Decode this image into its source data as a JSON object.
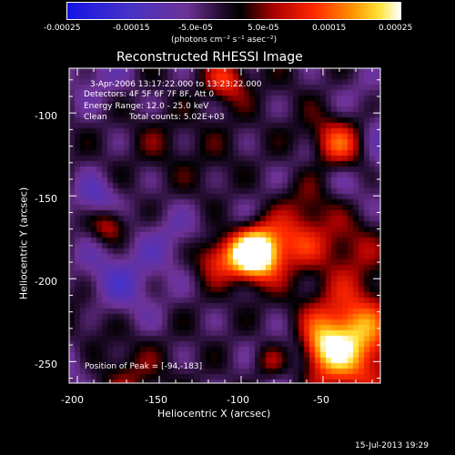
{
  "colorbar": {
    "tick_labels": [
      "-0.00025",
      "-0.00015",
      "-5.0e-05",
      "5.0e-05",
      "0.00015",
      "0.00025"
    ],
    "unit_text": "(photons cm⁻² s⁻¹ asec⁻²)",
    "range": [
      -0.00025,
      0.00025
    ]
  },
  "plot": {
    "title": "Reconstructed RHESSI Image",
    "x_axis_title": "Heliocentric X (arcsec)",
    "y_axis_title": "Heliocentric Y (arcsec)",
    "x_tick_labels": [
      "-200",
      "-150",
      "-100",
      "-50"
    ],
    "y_tick_labels": [
      "-100",
      "-150",
      "-200",
      "-250"
    ],
    "x_range": [
      -205,
      -15
    ],
    "y_range": [
      -263,
      -73
    ]
  },
  "info": {
    "time_range": "3-Apr-2006 13:17:22.000 to 13:23:22.000",
    "detectors": "Detectors: 4F 5F 6F 7F 8F, Att 0",
    "energy_range": "Energy Range: 12.0 - 25.0 keV",
    "clean_label": "Clean",
    "total_counts": "Total counts: 5.02E+03",
    "peak_position": "Position of Peak = [-94,-183]"
  },
  "footer": {
    "timestamp": "15-Jul-2013 19:29"
  },
  "colors": {
    "background": "#000000",
    "foreground": "#ffffff"
  }
}
